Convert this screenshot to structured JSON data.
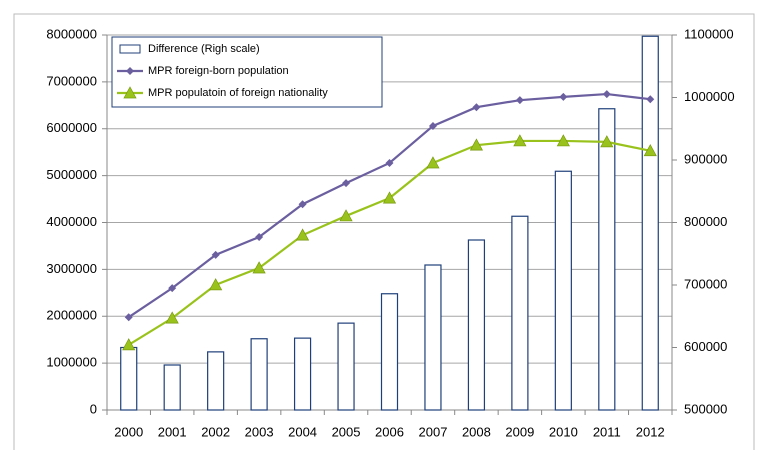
{
  "chart_data": {
    "type": "bar-line",
    "categories": [
      "2000",
      "2001",
      "2002",
      "2003",
      "2004",
      "2005",
      "2006",
      "2007",
      "2008",
      "2009",
      "2010",
      "2011",
      "2012"
    ],
    "series": [
      {
        "name": "Difference (Righ scale)",
        "type": "bar",
        "axis": "y2",
        "color": "#1f3f7a",
        "values": [
          600000,
          572000,
          593000,
          614000,
          615000,
          639000,
          686000,
          732000,
          772000,
          810000,
          882000,
          982000,
          1098000
        ]
      },
      {
        "name": "MPR foreign-born population",
        "type": "line",
        "marker": "diamond",
        "color": "#6b5f9f",
        "values": [
          1980000,
          2600000,
          3310000,
          3690000,
          4390000,
          4840000,
          5270000,
          6060000,
          6460000,
          6610000,
          6680000,
          6740000,
          6630000
        ]
      },
      {
        "name": "MPR populatoin of foreign nationality",
        "type": "line",
        "marker": "triangle",
        "color": "#99c31c",
        "values": [
          1390000,
          1960000,
          2670000,
          3030000,
          3730000,
          4140000,
          4520000,
          5270000,
          5650000,
          5740000,
          5740000,
          5720000,
          5530000
        ]
      }
    ],
    "ylim": [
      0,
      8000000
    ],
    "yticks": [
      0,
      1000000,
      2000000,
      3000000,
      4000000,
      5000000,
      6000000,
      7000000,
      8000000
    ],
    "y2lim": [
      500000,
      1100000
    ],
    "y2ticks": [
      500000,
      600000,
      700000,
      800000,
      900000,
      1000000,
      1100000
    ],
    "grid": true,
    "legend": "top-left"
  }
}
